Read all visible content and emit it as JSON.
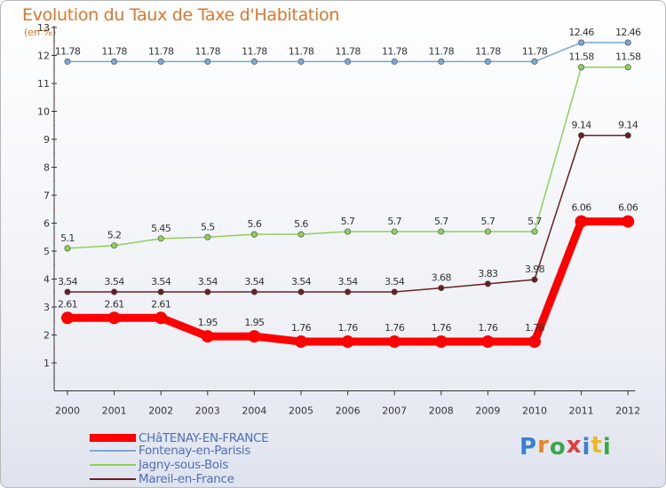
{
  "title": "Evolution du Taux de Taxe d'Habitation",
  "subtitle": "(en %)",
  "logo": {
    "text": "Proxiti",
    "letters": [
      "P",
      "r",
      "o",
      "x",
      "i",
      "t",
      "i"
    ],
    "colors": [
      "#3a7fd0",
      "#e8862a",
      "#3aa84a",
      "#e23c3c",
      "#3a7fd0",
      "#e8b92a",
      "#3aa84a"
    ]
  },
  "chart_data": {
    "type": "line",
    "title": "Evolution du Taux de Taxe d'Habitation",
    "ylabel": "(en %)",
    "xlabel": "",
    "x": [
      "2000",
      "2001",
      "2002",
      "2003",
      "2004",
      "2005",
      "2006",
      "2007",
      "2008",
      "2009",
      "2010",
      "2011",
      "2012"
    ],
    "ylim": [
      0,
      13
    ],
    "yticks": [
      "1",
      "2",
      "3",
      "4",
      "5",
      "6",
      "7",
      "8",
      "9",
      "10",
      "11",
      "12",
      "13"
    ],
    "grid": false,
    "legend_position": "bottom-left",
    "series": [
      {
        "name": "Mareil-en-France",
        "color": "#6b2020",
        "values": [
          3.54,
          3.54,
          3.54,
          3.54,
          3.54,
          3.54,
          3.54,
          3.54,
          3.68,
          3.83,
          3.98,
          9.14,
          9.14
        ],
        "labels": [
          "3.54",
          "3.54",
          "3.54",
          "3.54",
          "3.54",
          "3.54",
          "3.54",
          "3.54",
          "3.68",
          "3.83",
          "3.98",
          "9.14",
          "9.14"
        ]
      },
      {
        "name": "Jagny-sous-Bois",
        "color": "#8fd05a",
        "values": [
          5.1,
          5.2,
          5.45,
          5.5,
          5.6,
          5.6,
          5.7,
          5.7,
          5.7,
          5.7,
          5.7,
          11.58,
          11.58
        ],
        "labels": [
          "5.1",
          "5.2",
          "5.45",
          "5.5",
          "5.6",
          "5.6",
          "5.7",
          "5.7",
          "5.7",
          "5.7",
          "5.7",
          "11.58",
          "11.58"
        ]
      },
      {
        "name": "Fontenay-en-Parisis",
        "color": "#7aa7d6",
        "values": [
          11.78,
          11.78,
          11.78,
          11.78,
          11.78,
          11.78,
          11.78,
          11.78,
          11.78,
          11.78,
          11.78,
          12.46,
          12.46
        ],
        "labels": [
          "11.78",
          "11.78",
          "11.78",
          "11.78",
          "11.78",
          "11.78",
          "11.78",
          "11.78",
          "11.78",
          "11.78",
          "11.78",
          "12.46",
          "12.46"
        ]
      },
      {
        "name": "CHâTENAY-EN-FRANCE",
        "color": "#ff0000",
        "values": [
          2.61,
          2.61,
          2.61,
          1.95,
          1.95,
          1.76,
          1.76,
          1.76,
          1.76,
          1.76,
          1.76,
          6.06,
          6.06
        ],
        "labels": [
          "2.61",
          "2.61",
          "2.61",
          "1.95",
          "1.95",
          "1.76",
          "1.76",
          "1.76",
          "1.76",
          "1.76",
          "1.76",
          "6.06",
          "6.06"
        ]
      }
    ],
    "legend": [
      "CHâTENAY-EN-FRANCE",
      "Fontenay-en-Parisis",
      "Jagny-sous-Bois",
      "Mareil-en-France"
    ]
  }
}
